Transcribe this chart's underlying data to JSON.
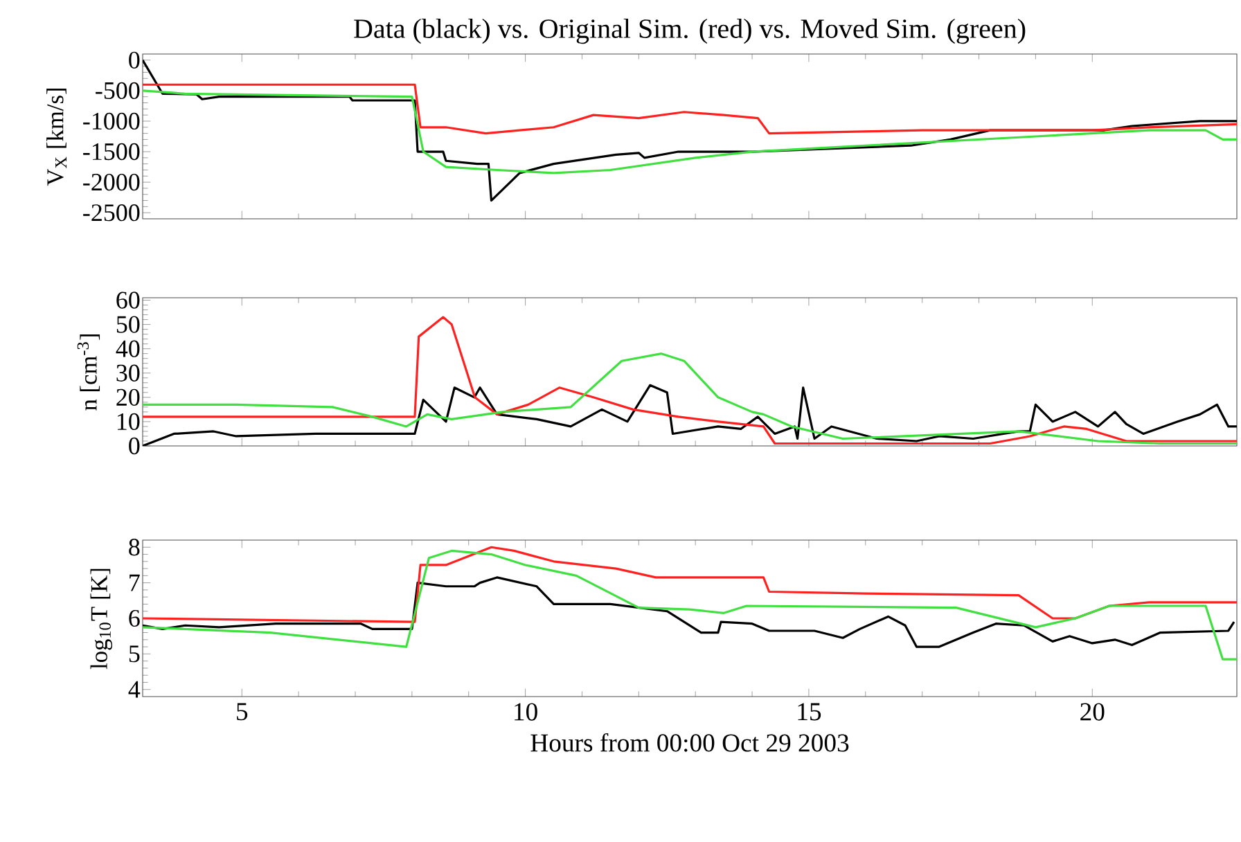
{
  "chart_data": [
    {
      "type": "line",
      "title": "Data (black) vs. Original Sim. (red) vs. Moved Sim. (green)",
      "ylabel": "V$_{X}$ [km/s]",
      "xlim": [
        3.25,
        22.55
      ],
      "xticks": [
        5,
        10,
        15,
        20
      ],
      "ylim": [
        -2600,
        100
      ],
      "yticks": [
        0,
        -500,
        -1000,
        -1500,
        -2000,
        -2500
      ],
      "tick_labels": "y",
      "series": [
        {
          "color": "#000000",
          "x": [
            3.25,
            3.6,
            4.2,
            4.3,
            4.6,
            6.9,
            6.95,
            8.05,
            8.1,
            8.55,
            8.6,
            9.15,
            9.35,
            9.4,
            9.9,
            10.5,
            11.6,
            12.0,
            12.1,
            12.7,
            14.0,
            15.4,
            16.8,
            17.5,
            18.2,
            20.2,
            20.7,
            21.9,
            22.55
          ],
          "values": [
            0,
            -550,
            -560,
            -640,
            -600,
            -600,
            -660,
            -660,
            -1500,
            -1500,
            -1650,
            -1700,
            -1700,
            -2300,
            -1850,
            -1700,
            -1550,
            -1520,
            -1600,
            -1500,
            -1500,
            -1450,
            -1400,
            -1300,
            -1150,
            -1150,
            -1080,
            -1000,
            -1000
          ]
        },
        {
          "color": "#ff2020",
          "x": [
            3.25,
            8.05,
            8.15,
            8.6,
            9.3,
            10.5,
            11.2,
            12.0,
            12.8,
            13.5,
            14.1,
            14.3,
            17.0,
            20.0,
            21.0,
            22.55
          ],
          "values": [
            -400,
            -400,
            -1100,
            -1100,
            -1200,
            -1100,
            -900,
            -950,
            -850,
            -900,
            -950,
            -1200,
            -1150,
            -1150,
            -1100,
            -1050
          ]
        },
        {
          "color": "#40e040",
          "x": [
            3.25,
            4.0,
            8.0,
            8.2,
            8.6,
            9.5,
            10.5,
            11.5,
            13.0,
            14.0,
            15.0,
            17.0,
            19.0,
            21.0,
            22.0,
            22.3,
            22.55
          ],
          "values": [
            -500,
            -550,
            -600,
            -1500,
            -1750,
            -1800,
            -1850,
            -1800,
            -1600,
            -1500,
            -1450,
            -1350,
            -1250,
            -1150,
            -1150,
            -1300,
            -1300
          ]
        }
      ]
    },
    {
      "type": "line",
      "ylabel": "n [cm$^{-3}$]",
      "xlim": [
        3.25,
        22.55
      ],
      "xticks": [
        5,
        10,
        15,
        20
      ],
      "ylim": [
        0,
        61
      ],
      "yticks": [
        0,
        10,
        20,
        30,
        40,
        50,
        60
      ],
      "tick_labels": "y",
      "series": [
        {
          "color": "#000000",
          "x": [
            3.25,
            3.8,
            4.5,
            4.9,
            6.3,
            8.05,
            8.2,
            8.6,
            8.75,
            9.1,
            9.2,
            9.5,
            10.2,
            10.8,
            11.35,
            11.8,
            12.2,
            12.5,
            12.6,
            13.4,
            13.8,
            14.1,
            14.4,
            14.75,
            14.8,
            14.9,
            15.1,
            15.4,
            16.2,
            16.9,
            17.3,
            17.9,
            18.7,
            18.9,
            19.0,
            19.3,
            19.7,
            20.1,
            20.4,
            20.6,
            20.9,
            21.5,
            21.9,
            22.2,
            22.4,
            22.55
          ],
          "values": [
            0,
            5,
            6,
            4,
            5,
            5,
            19,
            10,
            24,
            20,
            24,
            13,
            11,
            8,
            15,
            10,
            25,
            22,
            5,
            8,
            7,
            12,
            5,
            8,
            3,
            24,
            3,
            8,
            3,
            2,
            4,
            3,
            6,
            6,
            17,
            10,
            14,
            8,
            14,
            9,
            5,
            10,
            13,
            17,
            8,
            8
          ]
        },
        {
          "color": "#ff2020",
          "x": [
            3.25,
            8.05,
            8.12,
            8.55,
            8.7,
            9.11,
            9.5,
            10.05,
            10.6,
            11.2,
            11.9,
            12.7,
            13.4,
            14.2,
            14.4,
            18.2,
            18.9,
            19.5,
            19.9,
            20.6,
            22.55
          ],
          "values": [
            12,
            12,
            45,
            53,
            50,
            20,
            13,
            17,
            24,
            20,
            15,
            12,
            10,
            8,
            1,
            1,
            4,
            8,
            7,
            2,
            2
          ]
        },
        {
          "color": "#40e040",
          "x": [
            3.25,
            4.9,
            6.6,
            7.3,
            7.9,
            8.27,
            8.7,
            9.6,
            10.8,
            11.7,
            12.4,
            12.8,
            13.4,
            14.0,
            14.2,
            14.7,
            15.6,
            17.7,
            18.7,
            20.1,
            21.2,
            22.55
          ],
          "values": [
            17,
            17,
            16,
            12,
            8,
            13,
            11,
            14,
            16,
            35,
            38,
            35,
            20,
            14,
            13,
            8,
            3,
            5,
            6,
            2,
            1,
            1
          ]
        }
      ]
    },
    {
      "type": "line",
      "ylabel": "log$_{10}$T [K]",
      "xlabel": "Hours from 00:00 Oct 29 2003",
      "xlim": [
        3.25,
        22.55
      ],
      "xticks": [
        5,
        10,
        15,
        20
      ],
      "ylim": [
        3.8,
        8.2
      ],
      "yticks": [
        4,
        5,
        6,
        7,
        8
      ],
      "series": [
        {
          "color": "#000000",
          "x": [
            3.25,
            3.6,
            4.0,
            4.6,
            5.6,
            7.1,
            7.3,
            8.0,
            8.1,
            8.6,
            9.1,
            9.2,
            9.5,
            10.2,
            10.5,
            11.5,
            12.5,
            13.1,
            13.4,
            13.45,
            14.0,
            14.3,
            15.1,
            15.6,
            15.9,
            16.4,
            16.7,
            16.9,
            17.3,
            17.9,
            18.3,
            18.8,
            19.3,
            19.6,
            20.0,
            20.4,
            20.7,
            21.2,
            22.4,
            22.5
          ],
          "values": [
            5.8,
            5.7,
            5.8,
            5.75,
            5.85,
            5.85,
            5.7,
            5.7,
            7.0,
            6.9,
            6.9,
            7.0,
            7.15,
            6.9,
            6.4,
            6.4,
            6.2,
            5.6,
            5.6,
            5.9,
            5.85,
            5.65,
            5.65,
            5.45,
            5.7,
            6.05,
            5.8,
            5.2,
            5.2,
            5.6,
            5.85,
            5.8,
            5.35,
            5.5,
            5.3,
            5.4,
            5.25,
            5.6,
            5.65,
            5.9
          ]
        },
        {
          "color": "#ff2020",
          "x": [
            3.25,
            8.05,
            8.15,
            8.6,
            9.4,
            9.8,
            10.5,
            11.6,
            12.3,
            14.2,
            14.3,
            16.0,
            18.7,
            19.3,
            19.7,
            20.3,
            21.0,
            22.55
          ],
          "values": [
            6.0,
            5.9,
            7.5,
            7.5,
            8.0,
            7.9,
            7.6,
            7.4,
            7.15,
            7.15,
            6.75,
            6.7,
            6.65,
            6.0,
            6.0,
            6.35,
            6.45,
            6.45
          ]
        },
        {
          "color": "#40e040",
          "x": [
            3.25,
            5.5,
            7.9,
            8.3,
            8.7,
            9.4,
            10.0,
            10.9,
            12.0,
            12.9,
            13.5,
            13.9,
            17.6,
            19.0,
            19.7,
            20.3,
            22.0,
            22.3,
            22.55
          ],
          "values": [
            5.75,
            5.6,
            5.2,
            7.7,
            7.9,
            7.8,
            7.5,
            7.2,
            6.3,
            6.25,
            6.15,
            6.35,
            6.3,
            5.75,
            6.0,
            6.35,
            6.35,
            4.85,
            4.85
          ]
        }
      ]
    }
  ]
}
